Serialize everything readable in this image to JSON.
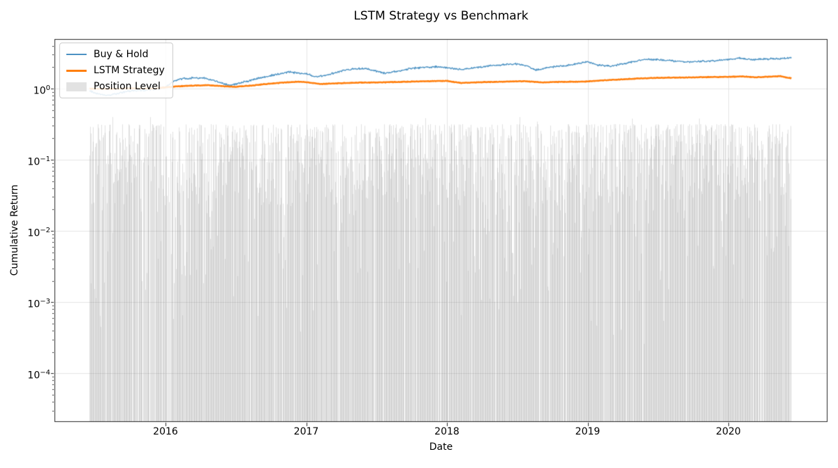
{
  "title": "LSTM Strategy vs Benchmark",
  "xlabel": "Date",
  "ylabel": "Cumulative Return",
  "legend": [
    {
      "label": "Buy & Hold",
      "type": "line",
      "color": "#4c92c3",
      "thickness": 2
    },
    {
      "label": "LSTM Strategy",
      "type": "line",
      "color": "#ff7f0e",
      "thickness": 3
    },
    {
      "label": "Position Level",
      "type": "patch",
      "color": "#e2e2e2"
    }
  ],
  "axes": {
    "x_ticks": [
      {
        "label": "2016",
        "value": 2016
      },
      {
        "label": "2017",
        "value": 2017
      },
      {
        "label": "2018",
        "value": 2018
      },
      {
        "label": "2019",
        "value": 2019
      },
      {
        "label": "2020",
        "value": 2020
      }
    ],
    "y_ticks": [
      {
        "base": "10",
        "exp": "0",
        "value": 1
      },
      {
        "base": "10",
        "exp": "−1",
        "value": 0.1
      },
      {
        "base": "10",
        "exp": "−2",
        "value": 0.01
      },
      {
        "base": "10",
        "exp": "−3",
        "value": 0.001
      },
      {
        "base": "10",
        "exp": "−4",
        "value": 0.0001
      }
    ],
    "grid_color": "#e4e4e4",
    "spine_color": "#262626"
  },
  "chart_data": {
    "type": "line",
    "title": "LSTM Strategy vs Benchmark",
    "xlabel": "Date",
    "ylabel": "Cumulative Return",
    "yscale": "log",
    "x_unit": "decimal_year",
    "xlim": [
      2015.21,
      2020.705
    ],
    "ylim": [
      2.06e-05,
      5.0
    ],
    "grid": true,
    "legend_position": "upper left",
    "series": [
      {
        "name": "Buy & Hold",
        "type": "line",
        "color": "#1f77b4",
        "alpha": 0.8,
        "line_width": 1.3,
        "noise_amplitude_log10": 0.016,
        "x": [
          2015.46,
          2015.52,
          2015.58,
          2015.65,
          2015.72,
          2015.8,
          2015.88,
          2015.96,
          2016.0,
          2016.06,
          2016.13,
          2016.22,
          2016.3,
          2016.38,
          2016.45,
          2016.52,
          2016.6,
          2016.7,
          2016.8,
          2016.88,
          2016.95,
          2017.0,
          2017.07,
          2017.15,
          2017.25,
          2017.33,
          2017.42,
          2017.5,
          2017.56,
          2017.65,
          2017.75,
          2017.85,
          2017.95,
          2018.0,
          2018.1,
          2018.2,
          2018.3,
          2018.4,
          2018.48,
          2018.56,
          2018.63,
          2018.72,
          2018.82,
          2018.92,
          2019.0,
          2019.08,
          2019.17,
          2019.28,
          2019.4,
          2019.5,
          2019.6,
          2019.7,
          2019.8,
          2019.9,
          2020.0,
          2020.08,
          2020.17,
          2020.25,
          2020.33,
          2020.4,
          2020.45
        ],
        "y": [
          0.93,
          0.85,
          0.8,
          0.85,
          0.91,
          0.94,
          0.96,
          1.0,
          1.05,
          1.28,
          1.38,
          1.42,
          1.38,
          1.22,
          1.12,
          1.18,
          1.3,
          1.45,
          1.6,
          1.72,
          1.63,
          1.6,
          1.46,
          1.56,
          1.76,
          1.88,
          1.92,
          1.75,
          1.63,
          1.76,
          1.92,
          2.0,
          2.02,
          1.98,
          1.84,
          1.96,
          2.08,
          2.15,
          2.22,
          2.12,
          1.82,
          1.97,
          2.08,
          2.22,
          2.4,
          2.12,
          2.08,
          2.28,
          2.58,
          2.55,
          2.45,
          2.36,
          2.4,
          2.46,
          2.55,
          2.68,
          2.55,
          2.6,
          2.63,
          2.66,
          2.7
        ]
      },
      {
        "name": "LSTM Strategy",
        "type": "line",
        "color": "#ff7f0e",
        "alpha": 1.0,
        "line_width": 2.5,
        "noise_amplitude_log10": 0.005,
        "x": [
          2015.46,
          2015.6,
          2015.75,
          2015.9,
          2016.0,
          2016.1,
          2016.2,
          2016.3,
          2016.4,
          2016.5,
          2016.6,
          2016.72,
          2016.85,
          2016.95,
          2017.0,
          2017.1,
          2017.2,
          2017.35,
          2017.5,
          2017.65,
          2017.8,
          2017.95,
          2018.0,
          2018.1,
          2018.25,
          2018.4,
          2018.55,
          2018.68,
          2018.8,
          2018.92,
          2019.0,
          2019.1,
          2019.25,
          2019.4,
          2019.55,
          2019.7,
          2019.85,
          2020.0,
          2020.1,
          2020.2,
          2020.3,
          2020.37,
          2020.42,
          2020.45
        ],
        "y": [
          1.0,
          0.99,
          1.01,
          1.0,
          1.04,
          1.08,
          1.1,
          1.12,
          1.08,
          1.06,
          1.1,
          1.16,
          1.22,
          1.25,
          1.23,
          1.16,
          1.18,
          1.21,
          1.22,
          1.24,
          1.26,
          1.28,
          1.28,
          1.2,
          1.23,
          1.25,
          1.27,
          1.22,
          1.24,
          1.25,
          1.26,
          1.3,
          1.35,
          1.4,
          1.42,
          1.43,
          1.45,
          1.46,
          1.48,
          1.44,
          1.47,
          1.5,
          1.42,
          1.4
        ]
      },
      {
        "name": "Position Level",
        "type": "bar",
        "color": "rgba(120,120,120,0.22)",
        "x_start": 2015.459,
        "x_end": 2020.446,
        "bars_per_year": 260,
        "seed": 1234,
        "gap_probability": 0.055,
        "top_typical_range": [
          0.03,
          0.35
        ],
        "top_max": 0.42,
        "description": "Daily position level drawn as thin translucent gray vertical bars rising from the bottom of the log axis; bar tops mostly between 0.03 and 0.35 with occasional deep dips below 1e-3 and occasional day gaps."
      }
    ]
  }
}
